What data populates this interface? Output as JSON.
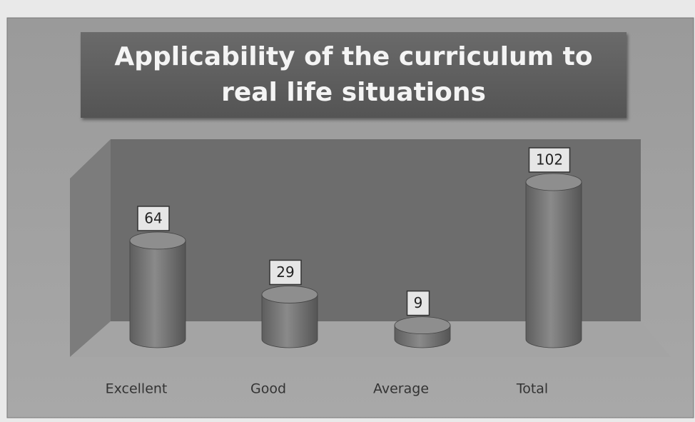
{
  "chart_data": {
    "type": "bar",
    "title": "Applicability of the curriculum to real life situations",
    "categories": [
      "Excellent",
      "Good",
      "Average",
      "Total"
    ],
    "values": [
      64,
      29,
      9,
      102
    ],
    "color": "#7a7a7a"
  }
}
